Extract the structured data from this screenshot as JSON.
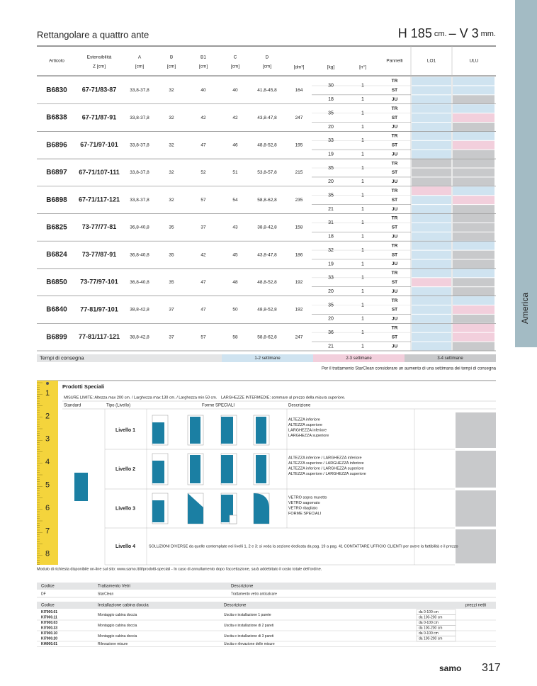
{
  "header": {
    "title": "Rettangolare a quattro ante",
    "size": [
      "H 185",
      "cm.",
      "– V 3",
      "mm."
    ]
  },
  "side_tab": "America",
  "table": {
    "headers": [
      [
        "Articolo"
      ],
      [
        "Estensibilità",
        "Z [cm]"
      ],
      [
        "A",
        "[cm]"
      ],
      [
        "B",
        "[cm]"
      ],
      [
        "B1",
        "[cm]"
      ],
      [
        "C",
        "[cm]"
      ],
      [
        "D",
        "[cm]"
      ],
      [
        "[dm³]"
      ],
      [
        "[kg]"
      ],
      [
        "[n°]"
      ],
      [
        "Pannelli"
      ],
      [
        "LO1"
      ],
      [
        "ULU"
      ]
    ],
    "palette": {
      "b": "#cfe3f0",
      "p": "#f2cfdc",
      "g": "#c8c9cb"
    },
    "rows": [
      {
        "code": "B6830",
        "ext": "67-71/83-87",
        "A": "33,8-37,8",
        "B": 32,
        "B1": 40,
        "C": 40,
        "D": "41,8-45,8",
        "vol": 164,
        "kg": [
          30,
          18
        ],
        "n": [
          1,
          1
        ],
        "panels": [
          "TR",
          "ST",
          "JU"
        ],
        "lo1": [
          "b",
          "b",
          "b"
        ],
        "ulu": [
          "b",
          "b",
          "g"
        ]
      },
      {
        "code": "B6838",
        "ext": "67-71/87-91",
        "A": "33,8-37,8",
        "B": 32,
        "B1": 42,
        "C": 42,
        "D": "43,8-47,8",
        "vol": 247,
        "kg": [
          35,
          20
        ],
        "n": [
          1,
          1
        ],
        "panels": [
          "TR",
          "ST",
          "JU"
        ],
        "lo1": [
          "b",
          "b",
          "b"
        ],
        "ulu": [
          "b",
          "p",
          "g"
        ]
      },
      {
        "code": "B6896",
        "ext": "67-71/97-101",
        "A": "33,8-37,8",
        "B": 32,
        "B1": 47,
        "C": 46,
        "D": "48,8-52,8",
        "vol": 195,
        "kg": [
          33,
          19
        ],
        "n": [
          1,
          1
        ],
        "panels": [
          "TR",
          "ST",
          "JU"
        ],
        "lo1": [
          "b",
          "b",
          "b"
        ],
        "ulu": [
          "b",
          "p",
          "g"
        ]
      },
      {
        "code": "B6897",
        "ext": "67-71/107-111",
        "A": "33,8-37,8",
        "B": 32,
        "B1": 52,
        "C": 51,
        "D": "53,8-57,8",
        "vol": 215,
        "kg": [
          35,
          20
        ],
        "n": [
          1,
          1
        ],
        "panels": [
          "TR",
          "ST",
          "JU"
        ],
        "lo1": [
          "g",
          "g",
          "g"
        ],
        "ulu": [
          "g",
          "g",
          "g"
        ]
      },
      {
        "code": "B6898",
        "ext": "67-71/117-121",
        "A": "33,8-37,8",
        "B": 32,
        "B1": 57,
        "C": 54,
        "D": "58,8-62,8",
        "vol": 235,
        "kg": [
          35,
          21
        ],
        "n": [
          1,
          1
        ],
        "panels": [
          "TR",
          "ST",
          "JU"
        ],
        "lo1": [
          "p",
          "b",
          "b"
        ],
        "ulu": [
          "b",
          "p",
          "g"
        ]
      },
      {
        "code": "B6825",
        "ext": "73-77/77-81",
        "A": "36,8-40,8",
        "B": 35,
        "B1": 37,
        "C": 43,
        "D": "38,8-42,8",
        "vol": 158,
        "kg": [
          31,
          18
        ],
        "n": [
          1,
          1
        ],
        "panels": [
          "TR",
          "ST",
          "JU"
        ],
        "lo1": [
          "b",
          "b",
          "b"
        ],
        "ulu": [
          "g",
          "g",
          "g"
        ]
      },
      {
        "code": "B6824",
        "ext": "73-77/87-91",
        "A": "36,8-40,8",
        "B": 35,
        "B1": 42,
        "C": 45,
        "D": "43,8-47,8",
        "vol": 186,
        "kg": [
          32,
          19
        ],
        "n": [
          1,
          1
        ],
        "panels": [
          "TR",
          "ST",
          "JU"
        ],
        "lo1": [
          "b",
          "b",
          "b"
        ],
        "ulu": [
          "b",
          "g",
          "g"
        ]
      },
      {
        "code": "B6850",
        "ext": "73-77/97-101",
        "A": "36,8-40,8",
        "B": 35,
        "B1": 47,
        "C": 48,
        "D": "48,8-52,8",
        "vol": 192,
        "kg": [
          33,
          20
        ],
        "n": [
          1,
          1
        ],
        "panels": [
          "TR",
          "ST",
          "JU"
        ],
        "lo1": [
          "b",
          "p",
          "b"
        ],
        "ulu": [
          "b",
          "g",
          "g"
        ]
      },
      {
        "code": "B6840",
        "ext": "77-81/97-101",
        "A": "38,8-42,8",
        "B": 37,
        "B1": 47,
        "C": 50,
        "D": "48,8-52,8",
        "vol": 192,
        "kg": [
          35,
          20
        ],
        "n": [
          1,
          1
        ],
        "panels": [
          "TR",
          "ST",
          "JU"
        ],
        "lo1": [
          "b",
          "b",
          "b"
        ],
        "ulu": [
          "b",
          "p",
          "g"
        ]
      },
      {
        "code": "B6899",
        "ext": "77-81/117-121",
        "A": "38,8-42,8",
        "B": 37,
        "B1": 57,
        "C": 58,
        "D": "58,8-62,8",
        "vol": 247,
        "kg": [
          36,
          21
        ],
        "n": [
          1,
          1
        ],
        "panels": [
          "TR",
          "ST",
          "JU"
        ],
        "lo1": [
          "b",
          "b",
          "b"
        ],
        "ulu": [
          "p",
          "p",
          "g"
        ]
      }
    ]
  },
  "delivery": {
    "label": "Tempi di consegna",
    "items": [
      "1-2 settimane",
      "2-3 settimane",
      "3-4 settimane"
    ],
    "note": "Per il trattamento StarClean considerare un aumento di una settimana dei tempi di consegna"
  },
  "special": {
    "title": "Prodotti Speciali",
    "ruler": [
      "1",
      "2",
      "3",
      "4",
      "5",
      "6",
      "7",
      "8"
    ],
    "limits": [
      "MISURE LIMITE: Altezza max 200 cm. / Larghezza max 130 cm. / Larghezza min 50 cm.",
      "LARGHEZZE INTERMEDIE: sommare al prezzo della misura superiore."
    ],
    "headers": [
      "Standard",
      "Tipo (Livello)",
      "Forme SPECIALI",
      "Descrizione"
    ],
    "levels": [
      {
        "name": "Livello 1",
        "description": [
          "ALTEZZA inferiore",
          "ALTEZZA superiore",
          "LARGHEZZA inferiore",
          "LARGHEZZA superiore"
        ]
      },
      {
        "name": "Livello 2",
        "description": [
          "ALTEZZA inferiore / LARGHEZZA inferiore",
          "ALTEZZA superiore / LARGHEZZA inferiore",
          "ALTEZZA inferiore / LARGHEZZA superiore",
          "ALTEZZA superiore / LARGHEZZA superiore"
        ]
      },
      {
        "name": "Livello 3",
        "description": [
          "VETRO sopra muretto",
          "VETRO sagomato",
          "VETRO ritagliato",
          "FORME SPECIALI"
        ]
      },
      {
        "name": "Livello 4",
        "description": [
          "SOLUZIONI DIVERSE da quelle contemplate nei livelli 1, 2 e 3: si veda la sezione dedicata da pag. 19 a pag. 41 CONTATTARE UFFICIO CLIENTI per avere la fattibilità e il prezzo"
        ]
      }
    ],
    "footnote": "Modulo di richiesta disponibile on-line sul sito: www.samo.it/it/prodotti-speciali - In caso di annullamento dopo l'accettazione, sarà addebitato il costo totale dell'ordine."
  },
  "treatment": {
    "headers": [
      "Codice",
      "Trattamento Vetri",
      "Descrizione"
    ],
    "rows": [
      [
        "DF",
        "StarClean",
        "Trattamento vetro anticalcare"
      ]
    ]
  },
  "installation": {
    "headers": [
      "Codice",
      "Installazione cabina doccia",
      "Descrizione",
      "prezzi netti"
    ],
    "groups": [
      {
        "codes": [
          "KI7000.01",
          "KI7000.11"
        ],
        "type": "Montaggio cabina doccia",
        "description": "Uscita e installazione 1 parete",
        "ranges": [
          "da 0-100 cm",
          "da 100-200 cm"
        ]
      },
      {
        "codes": [
          "KI7000.03",
          "KI7000.33"
        ],
        "type": "Montaggio cabina doccia",
        "description": "Uscita e installazione di 2 pareti",
        "ranges": [
          "da 0-100 cm",
          "da 100-200 cm"
        ]
      },
      {
        "codes": [
          "KI7000.10",
          "KI7000.20"
        ],
        "type": "Montaggio cabina doccia",
        "description": "Uscita e installazione di 3 pareti",
        "ranges": [
          "da 0-100 cm",
          "da 100-200 cm"
        ]
      },
      {
        "codes": [
          "KI4000.01"
        ],
        "type": "Rilevazione misure",
        "description": "Uscita e rilevazione delle misure",
        "ranges": []
      }
    ]
  },
  "footer": {
    "brand": "samo",
    "page": "317"
  }
}
